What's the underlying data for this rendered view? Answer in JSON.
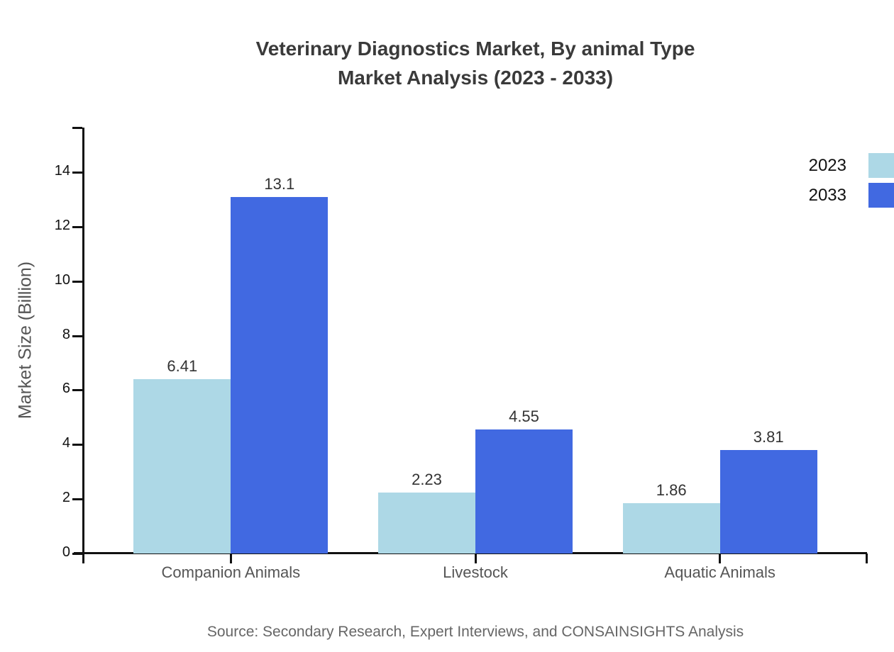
{
  "title": {
    "line1": "Veterinary Diagnostics Market, By animal Type",
    "line2": "Market Analysis (2023 - 2033)"
  },
  "source": "Source: Secondary Research, Expert Interviews, and CONSAINSIGHTS Analysis",
  "chart_data": {
    "type": "bar",
    "categories": [
      "Companion Animals",
      "Livestock",
      "Aquatic Animals"
    ],
    "series": [
      {
        "name": "2023",
        "color": "#ADD8E6",
        "values": [
          6.41,
          2.23,
          1.86
        ]
      },
      {
        "name": "2033",
        "color": "#4169E1",
        "values": [
          13.1,
          4.55,
          3.81
        ]
      }
    ],
    "title": "Veterinary Diagnostics Market, By animal Type Market Analysis (2023 - 2033)",
    "xlabel": "",
    "ylabel": "Market Size (Billion)",
    "yticks": [
      0,
      2,
      4,
      6,
      8,
      10,
      12,
      14
    ],
    "ylim": [
      0,
      15.64
    ],
    "grid": false,
    "legend_position": "top-right",
    "value_labels": [
      "6.41",
      "13.1",
      "2.23",
      "4.55",
      "1.86",
      "3.81"
    ],
    "axis_color": "#111111",
    "tick_label_color": "#111111",
    "category_label_color": "#555555",
    "value_label_color": "#333333",
    "ylabel_color": "#555555",
    "title_color": "#3a3a3a",
    "source_color": "#666666"
  }
}
